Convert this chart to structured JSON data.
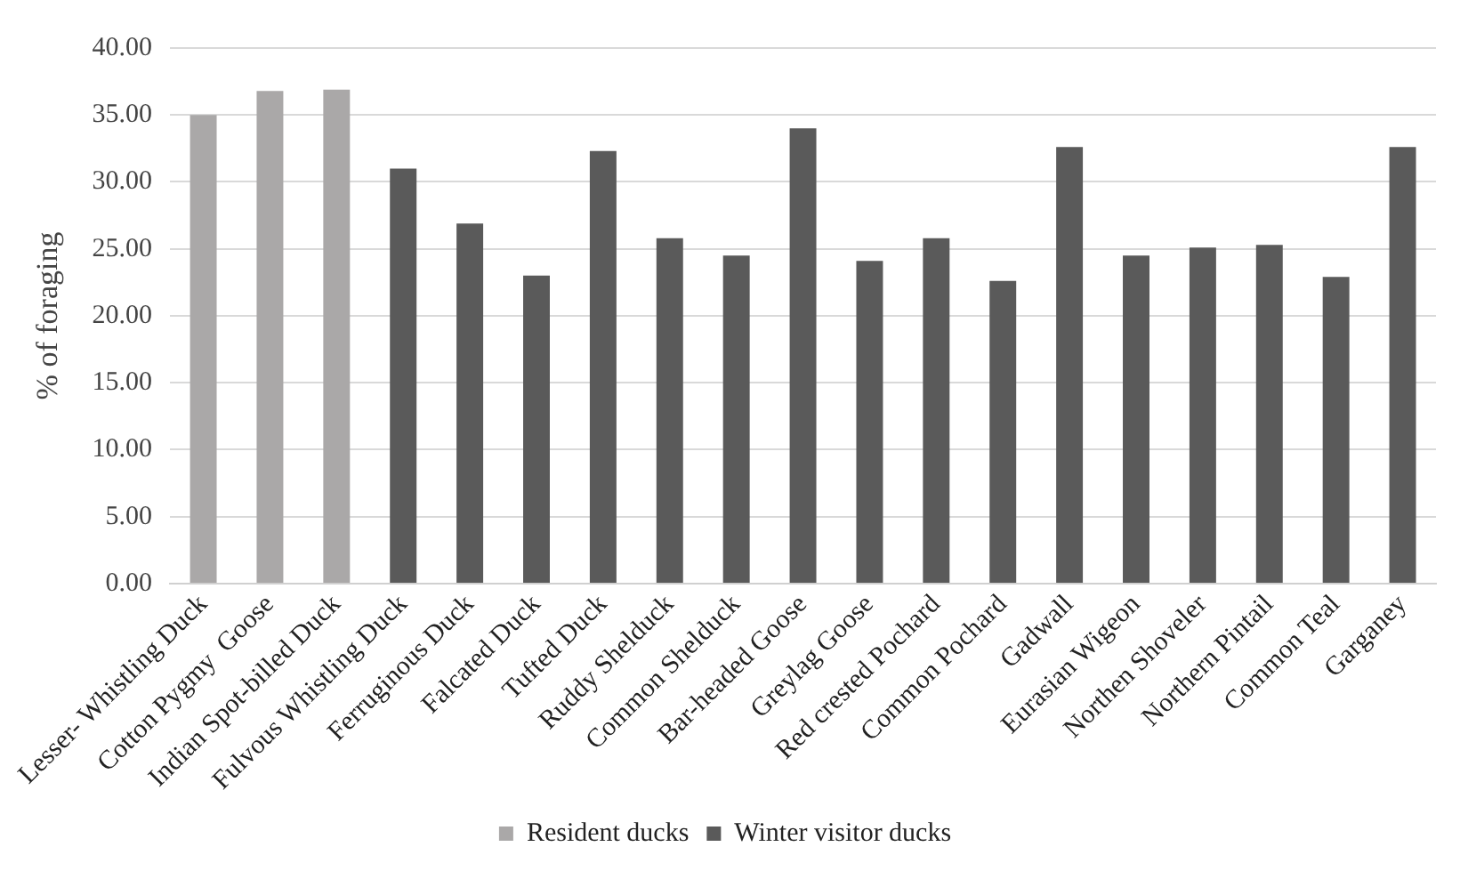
{
  "chart_data": {
    "type": "bar",
    "ylabel": "% of foraging",
    "categories": [
      "Lesser- Whistling Duck",
      "Cotton Pygmy  Goose",
      "Indian Spot-billed Duck",
      "Fulvous Whistling Duck",
      "Ferruginous Duck",
      "Falcated Duck",
      "Tufted Duck",
      "Ruddy Shelduck",
      "Common Shelduck",
      "Bar-headed Goose",
      "Greylag Goose",
      "Red crested Pochard",
      "Common Pochard",
      "Gadwall",
      "Eurasian Wigeon",
      "Northen Shoveler",
      "Northern Pintail",
      "Common Teal",
      "Garganey"
    ],
    "series": [
      {
        "name": "Resident ducks",
        "color": "#aaa8a8",
        "values": [
          35.0,
          36.8,
          36.9,
          null,
          null,
          null,
          null,
          null,
          null,
          null,
          null,
          null,
          null,
          null,
          null,
          null,
          null,
          null,
          null
        ]
      },
      {
        "name": "Winter visitor ducks",
        "color": "#5a5a5a",
        "values": [
          null,
          null,
          null,
          31.0,
          26.9,
          23.0,
          32.3,
          25.8,
          24.5,
          34.0,
          24.1,
          25.8,
          22.6,
          32.6,
          24.5,
          25.1,
          25.3,
          22.9,
          32.6
        ]
      }
    ],
    "ylim": [
      0,
      40
    ],
    "yticks": [
      {
        "value": 0,
        "label": "0.00"
      },
      {
        "value": 5,
        "label": "5.00"
      },
      {
        "value": 10,
        "label": "10.00"
      },
      {
        "value": 15,
        "label": "15.00"
      },
      {
        "value": 20,
        "label": "20.00"
      },
      {
        "value": 25,
        "label": "25.00"
      },
      {
        "value": 30,
        "label": "30.00"
      },
      {
        "value": 35,
        "label": "35.00"
      },
      {
        "value": 40,
        "label": "40.00"
      }
    ],
    "grid": "y",
    "legend": "bottom"
  }
}
